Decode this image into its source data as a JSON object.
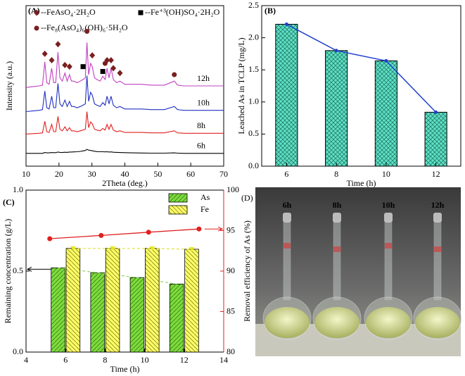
{
  "chart_data": [
    {
      "type": "line",
      "panel": "(A)",
      "xlabel": "2Theta (deg.)",
      "ylabel": "Intensity (a.u.)",
      "xlim": [
        10,
        70
      ],
      "xticks": [
        10,
        20,
        30,
        40,
        50,
        60,
        70
      ],
      "ylim": [
        0,
        100
      ],
      "x": [
        10,
        12,
        14,
        15,
        15.7,
        16.3,
        17,
        17.8,
        18.4,
        19,
        19.7,
        20.3,
        21,
        21.8,
        22.5,
        23.2,
        23.8,
        24.5,
        25.5,
        26.5,
        27.3,
        28,
        28.5,
        29,
        29.6,
        30.1,
        30.8,
        31.5,
        32.5,
        33.3,
        34,
        34.6,
        35.2,
        35.8,
        36.5,
        37.5,
        38.5,
        40,
        42,
        45,
        48,
        52,
        55,
        56,
        58,
        62,
        66,
        70
      ],
      "series": [
        {
          "name": "12h",
          "color": "#c040c0",
          "values": [
            49,
            49.5,
            50,
            50.5,
            65,
            52,
            51,
            61,
            52,
            52,
            71,
            55,
            53,
            58,
            53,
            57,
            53,
            53,
            52,
            53,
            54,
            55,
            77,
            57,
            64,
            62,
            55,
            54,
            53,
            56,
            54,
            61,
            55,
            61,
            54,
            52,
            53,
            51,
            51,
            51,
            50.5,
            50.5,
            53,
            50.5,
            50,
            50,
            50,
            50
          ]
        },
        {
          "name": "10h",
          "color": "#2030c0",
          "values": [
            34,
            34.4,
            34.8,
            35.2,
            46.8,
            36.4,
            35.6,
            43.6,
            36.4,
            36.4,
            51.6,
            38.8,
            37.2,
            41.2,
            37.2,
            40.4,
            37.2,
            37.2,
            36.4,
            37.2,
            38,
            38.8,
            56.4,
            40.4,
            46,
            44.4,
            38.8,
            38,
            37.2,
            39.6,
            38,
            43.6,
            38.8,
            43.6,
            38,
            36.4,
            37.2,
            35.6,
            35.6,
            35.6,
            35.2,
            35.2,
            37.2,
            35.2,
            34.8,
            34.8,
            34.8,
            34.8
          ]
        },
        {
          "name": "8h",
          "color": "#e02020",
          "values": [
            20,
            20.25,
            20.5,
            20.75,
            28,
            21.5,
            21,
            26,
            21.5,
            21.5,
            31,
            23,
            22,
            24.5,
            22,
            24,
            22,
            22,
            21.5,
            22,
            22.5,
            23,
            34,
            24,
            27.5,
            26.5,
            23,
            22.5,
            22,
            23.5,
            22.5,
            26,
            23,
            26,
            22.5,
            21.5,
            22,
            21,
            21,
            21,
            20.75,
            20.75,
            22,
            20.75,
            20.5,
            20.5,
            20.5,
            20.5
          ]
        },
        {
          "name": "6h",
          "color": "#000000",
          "values": [
            8,
            8,
            8,
            8,
            8.5,
            8.3,
            8.3,
            8.5,
            8.4,
            8.4,
            8.8,
            8.6,
            8.5,
            8.7,
            8.6,
            8.8,
            8.8,
            8.9,
            9,
            9.2,
            9.5,
            9.8,
            10.5,
            10,
            9.8,
            9.6,
            9.3,
            9.1,
            9,
            9,
            8.9,
            9,
            8.8,
            8.9,
            8.7,
            8.6,
            8.5,
            8.4,
            8.3,
            8.2,
            8.1,
            8.1,
            8.3,
            8.1,
            8,
            8,
            8,
            8
          ]
        }
      ],
      "phases": [
        {
          "name": "--FeAsO₄·2H₂O",
          "marker": "diamond",
          "color": "#7a1f1f",
          "x": [
            15.7,
            17.8,
            19.7,
            21.8,
            23.2,
            30.1,
            34.6,
            35.8,
            36.5,
            38.5
          ],
          "y": [
            70,
            66,
            76,
            63,
            62,
            69,
            66,
            66,
            61,
            58
          ]
        },
        {
          "name": "--Fe₈(AsO₄)₆(OH)₆·5H₂O",
          "marker": "circle",
          "color": "#7a1f1f",
          "x": [
            28.5,
            34,
            55
          ],
          "y": [
            84,
            64,
            57
          ]
        },
        {
          "name": "--Fe⁺³(OH)SO₄·2H₂O",
          "marker": "square",
          "color": "#000000",
          "x": [
            27.3,
            33.3
          ],
          "y": [
            62,
            59
          ]
        }
      ]
    },
    {
      "type": "bar",
      "panel": "(B)",
      "xlabel": "Time (h)",
      "ylabel": "Leached As in TCLP (mg/L)",
      "categories": [
        "6",
        "8",
        "10",
        "12"
      ],
      "values": [
        2.21,
        1.8,
        1.64,
        0.84
      ],
      "color": "#5fe0c4",
      "line_color": "#2040d0",
      "ylim": [
        0,
        2.5
      ],
      "yticks": [
        {
          "value": 0,
          "label": "0.0"
        },
        {
          "value": 0.5,
          "label": "0.5"
        },
        {
          "value": 1,
          "label": "1.0"
        },
        {
          "value": 1.5,
          "label": "1.5"
        },
        {
          "value": 2,
          "label": "2.0"
        },
        {
          "value": 2.5,
          "label": "2.5"
        }
      ]
    },
    {
      "type": "grouped-bar",
      "panel": "(C)",
      "xlabel": "Time (h)",
      "ylabel": "Remaining concentration (g/L)",
      "y2label": "Removal efficiency of As (%)",
      "xlim": [
        4,
        14
      ],
      "xticks": [
        4,
        6,
        8,
        10,
        12,
        14
      ],
      "x": [
        6,
        8,
        10,
        12
      ],
      "ylim": [
        0,
        1
      ],
      "yticks": [
        {
          "value": 0,
          "label": "0.0"
        },
        {
          "value": 0.5,
          "label": "0.5"
        },
        {
          "value": 1,
          "label": "1.0"
        }
      ],
      "y2lim": [
        80,
        100
      ],
      "y2ticks": [
        80,
        85,
        90,
        95,
        100
      ],
      "series": [
        {
          "name": "As",
          "color": "#7ddc3c",
          "line_color": "#8fd45a",
          "values": [
            0.52,
            0.49,
            0.46,
            0.42
          ]
        },
        {
          "name": "Fe",
          "color": "#ffff66",
          "line_color": "#e0e040",
          "values": [
            0.64,
            0.64,
            0.64,
            0.635
          ]
        }
      ],
      "y2_series": {
        "axis": "y2",
        "color": "#e02020",
        "x": [
          5.2,
          7.8,
          10.2,
          12.75
        ],
        "values": [
          94.0,
          94.4,
          94.8,
          95.2
        ]
      }
    },
    {
      "type": "image",
      "panel": "(D)",
      "labels": [
        "6h",
        "8h",
        "10h",
        "12h"
      ]
    }
  ]
}
